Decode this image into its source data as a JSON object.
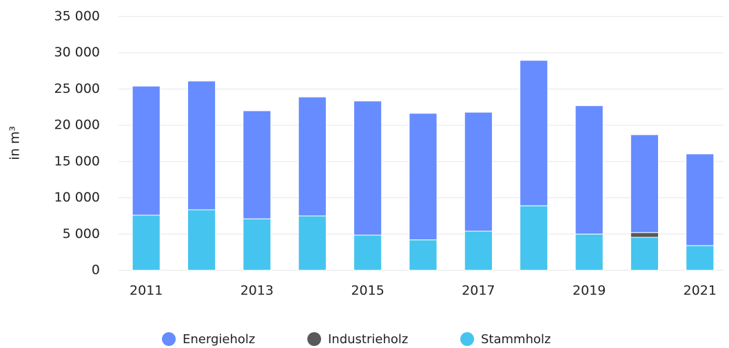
{
  "chart_data": {
    "type": "bar",
    "stacked": true,
    "y_label": "in m³",
    "categories": [
      "2011",
      null,
      "2013",
      null,
      "2015",
      null,
      "2017",
      null,
      "2019",
      null,
      "2021"
    ],
    "series": [
      {
        "name": "Stammholz",
        "color": "#45c4ef",
        "values": [
          7600,
          8350,
          7100,
          7500,
          4850,
          4200,
          5400,
          8900,
          5000,
          4550,
          3400
        ]
      },
      {
        "name": "Industrieholz",
        "color": "#595959",
        "values": [
          0,
          0,
          0,
          0,
          0,
          0,
          0,
          0,
          0,
          650,
          0
        ]
      },
      {
        "name": "Energieholz",
        "color": "#668cff",
        "values": [
          17800,
          17750,
          14900,
          16400,
          18500,
          17450,
          16400,
          20050,
          17700,
          13500,
          12650
        ]
      }
    ],
    "legend_order": [
      "Energieholz",
      "Industrieholz",
      "Stammholz"
    ],
    "ylim": [
      0,
      35000
    ],
    "yticks": [
      0,
      {
        "value": 5000,
        "label": "5 000"
      },
      {
        "value": 10000,
        "label": "10 000"
      },
      {
        "value": 15000,
        "label": "15 000"
      },
      {
        "value": 20000,
        "label": "20 000"
      },
      {
        "value": 25000,
        "label": "25 000"
      },
      {
        "value": 30000,
        "label": "30 000"
      },
      {
        "value": 35000,
        "label": "35 000"
      }
    ],
    "grid": true,
    "legend": "bottom"
  }
}
